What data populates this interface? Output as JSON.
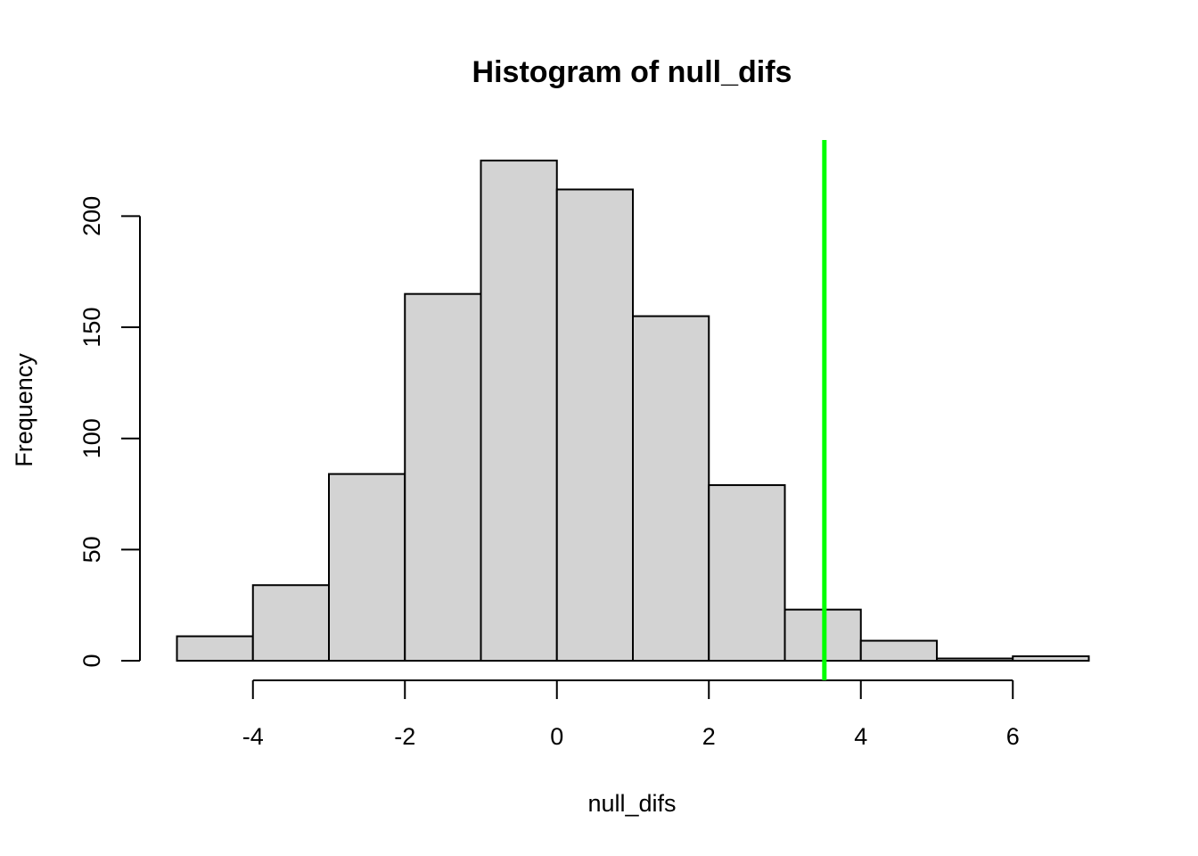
{
  "chart_data": {
    "type": "bar",
    "title": "Histogram of null_difs",
    "xlabel": "null_difs",
    "ylabel": "Frequency",
    "bin_edges": [
      -5,
      -4,
      -3,
      -2,
      -1,
      0,
      1,
      2,
      3,
      4,
      5,
      6,
      7
    ],
    "values": [
      11,
      34,
      84,
      165,
      225,
      212,
      155,
      79,
      23,
      9,
      1,
      2
    ],
    "xlim": [
      -5,
      7
    ],
    "ylim": [
      0,
      225
    ],
    "x_ticks": [
      -4,
      -2,
      0,
      2,
      4,
      6
    ],
    "y_ticks": [
      0,
      50,
      100,
      150,
      200
    ],
    "bar_fill": "#d3d3d3",
    "bar_stroke": "#000000",
    "reference_line": {
      "x": 3.52,
      "color": "#00ff00"
    },
    "grid": false,
    "legend": "none"
  }
}
